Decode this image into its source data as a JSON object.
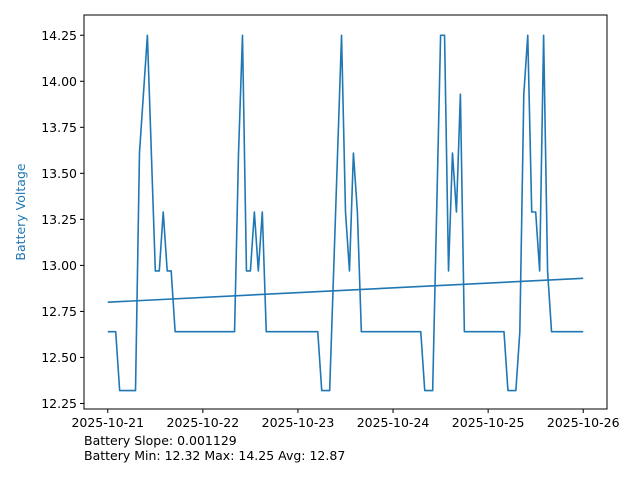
{
  "chart_data": {
    "type": "line",
    "title": "",
    "xlabel": "",
    "ylabel": "Battery Voltage",
    "ylabel_color": "#1f77b4",
    "xlim": [
      "2025-10-20T18:00",
      "2025-10-26T06:00"
    ],
    "ylim": [
      12.22,
      14.36
    ],
    "xticks": [
      {
        "value": "2025-10-21T00:00",
        "label": "2025-10-21"
      },
      {
        "value": "2025-10-22T00:00",
        "label": "2025-10-22"
      },
      {
        "value": "2025-10-23T00:00",
        "label": "2025-10-23"
      },
      {
        "value": "2025-10-24T00:00",
        "label": "2025-10-24"
      },
      {
        "value": "2025-10-25T00:00",
        "label": "2025-10-25"
      },
      {
        "value": "2025-10-26T00:00",
        "label": "2025-10-26"
      }
    ],
    "yticks": [
      {
        "value": 12.25,
        "label": "12.25"
      },
      {
        "value": 12.5,
        "label": "12.50"
      },
      {
        "value": 12.75,
        "label": "12.75"
      },
      {
        "value": 13.0,
        "label": "13.00"
      },
      {
        "value": 13.25,
        "label": "13.25"
      },
      {
        "value": 13.5,
        "label": "13.50"
      },
      {
        "value": 13.75,
        "label": "13.75"
      },
      {
        "value": 14.0,
        "label": "14.00"
      },
      {
        "value": 14.25,
        "label": "14.25"
      }
    ],
    "grid": false,
    "series": [
      {
        "color": "#1f77b4",
        "x": [
          "2025-10-21T00:00",
          "2025-10-21T02:00",
          "2025-10-21T03:00",
          "2025-10-21T07:00",
          "2025-10-21T08:00",
          "2025-10-21T10:00",
          "2025-10-21T12:00",
          "2025-10-21T13:00",
          "2025-10-21T14:00",
          "2025-10-21T15:00",
          "2025-10-21T16:00",
          "2025-10-21T17:00",
          "2025-10-21T18:00",
          "2025-10-22T08:00",
          "2025-10-22T09:00",
          "2025-10-22T10:00",
          "2025-10-22T11:00",
          "2025-10-22T12:00",
          "2025-10-22T13:00",
          "2025-10-22T14:00",
          "2025-10-22T15:00",
          "2025-10-22T16:00",
          "2025-10-23T05:00",
          "2025-10-23T06:00",
          "2025-10-23T08:00",
          "2025-10-23T10:00",
          "2025-10-23T11:00",
          "2025-10-23T12:00",
          "2025-10-23T13:00",
          "2025-10-23T14:00",
          "2025-10-23T15:00",
          "2025-10-23T16:00",
          "2025-10-24T07:00",
          "2025-10-24T08:00",
          "2025-10-24T10:00",
          "2025-10-24T12:00",
          "2025-10-24T13:00",
          "2025-10-24T14:00",
          "2025-10-24T15:00",
          "2025-10-24T16:00",
          "2025-10-24T17:00",
          "2025-10-24T18:00",
          "2025-10-25T04:00",
          "2025-10-25T05:00",
          "2025-10-25T07:00",
          "2025-10-25T08:00",
          "2025-10-25T09:00",
          "2025-10-25T10:00",
          "2025-10-25T11:00",
          "2025-10-25T12:00",
          "2025-10-25T13:00",
          "2025-10-25T14:00",
          "2025-10-25T15:00",
          "2025-10-25T16:00",
          "2025-10-25T17:00",
          "2025-10-26T00:00"
        ],
        "y": [
          12.64,
          12.64,
          12.32,
          12.32,
          13.61,
          14.25,
          12.97,
          12.97,
          13.29,
          12.97,
          12.97,
          12.64,
          12.64,
          12.64,
          13.61,
          14.25,
          12.97,
          12.97,
          13.29,
          12.97,
          13.29,
          12.64,
          12.64,
          12.32,
          12.32,
          13.61,
          14.25,
          13.29,
          12.97,
          13.61,
          13.29,
          12.64,
          12.64,
          12.32,
          12.32,
          14.25,
          14.25,
          12.97,
          13.61,
          13.29,
          13.93,
          12.64,
          12.64,
          12.32,
          12.32,
          12.64,
          13.93,
          14.25,
          13.29,
          13.29,
          12.97,
          14.25,
          12.97,
          12.64,
          12.64,
          12.64
        ]
      },
      {
        "color": "#1f77b4",
        "x": [
          "2025-10-21T00:00",
          "2025-10-26T00:00"
        ],
        "y": [
          12.8,
          12.93
        ]
      }
    ]
  },
  "stats": {
    "slope_line": "Battery Slope: 0.001129",
    "minmax_line": "Battery Min: 12.32 Max: 14.25 Avg: 12.87"
  }
}
